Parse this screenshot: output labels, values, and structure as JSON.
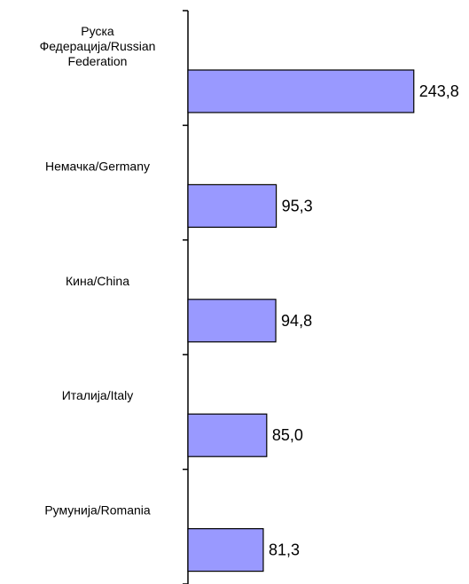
{
  "chart_data": {
    "type": "bar",
    "orientation": "horizontal",
    "categories": [
      [
        "Руска",
        "Федерација/Russian",
        "Federation"
      ],
      [
        "Немачка/Germany"
      ],
      [
        "Кина/China"
      ],
      [
        "Италија/Italy"
      ],
      [
        "Румунија/Romania"
      ]
    ],
    "values": [
      243.8,
      95.3,
      94.8,
      85.0,
      81.3
    ],
    "value_labels": [
      "243,8",
      "95,3",
      "94,8",
      "85,0",
      "81,3"
    ],
    "xlim": [
      0,
      245
    ],
    "grid": false,
    "legend": "none",
    "bar_color": "#9999ff",
    "bar_edge_color": "#000000"
  }
}
